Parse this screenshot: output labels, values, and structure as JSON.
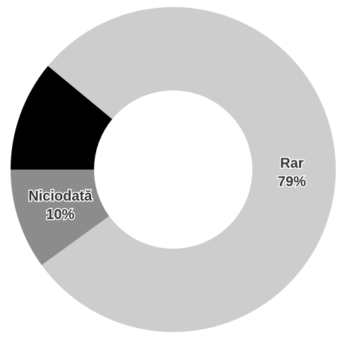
{
  "chart_data": {
    "type": "donut",
    "categories": [
      "Rar",
      "Niciodată",
      null
    ],
    "values": [
      79,
      10,
      11
    ],
    "value_labels": [
      "79%",
      "10%",
      null
    ],
    "colors": [
      "#cdcdcd",
      "#8c8c8c",
      "#000000"
    ]
  }
}
